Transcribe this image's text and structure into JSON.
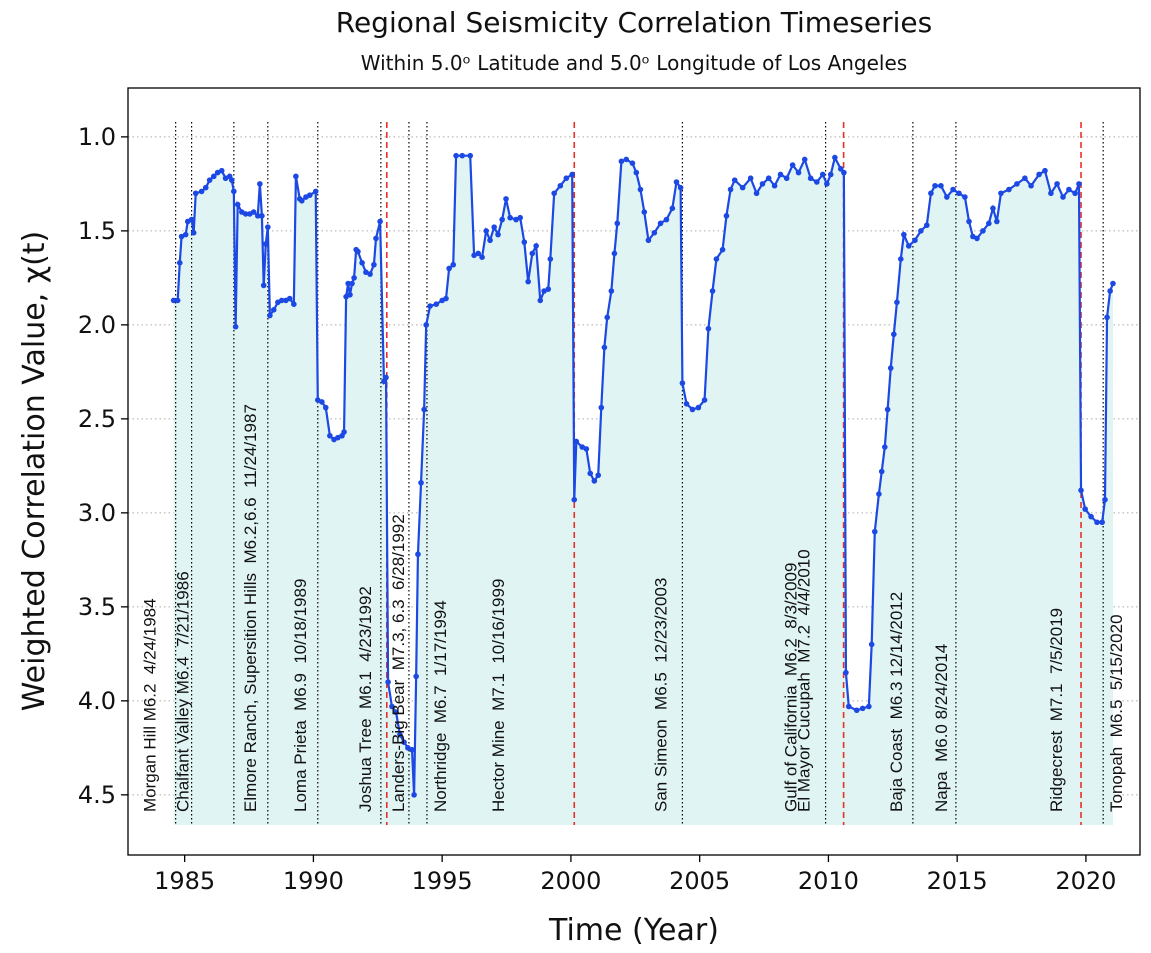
{
  "chart_data": {
    "type": "line",
    "title": "Regional Seismicity Correlation Timeseries",
    "subtitle": "Within 5.0ᵒ Latitude and 5.0ᵒ Longitude of Los Angeles",
    "xlabel": "Time (Year)",
    "ylabel": "Weighted Correlation Value, χ(t)",
    "xlim": [
      1982.8,
      2022.1
    ],
    "ylim": [
      4.82,
      0.74
    ],
    "xticks": [
      1985,
      1990,
      1995,
      2000,
      2005,
      2010,
      2015,
      2020
    ],
    "yticks": [
      {
        "value": 1,
        "label": "1.0"
      },
      1.5,
      {
        "value": 2,
        "label": "2.0"
      },
      2.5,
      {
        "value": 3,
        "label": "3.0"
      },
      3.5,
      {
        "value": 4,
        "label": "4.0"
      },
      4.5
    ],
    "grid": true,
    "fill_color": "#e0f4f4",
    "series": [
      {
        "color": "#1c48e3",
        "x": [
          1984.57,
          1984.73,
          1984.81,
          1984.88,
          1985.04,
          1985.12,
          1985.27,
          1985.35,
          1985.43,
          1985.66,
          1985.82,
          1985.97,
          1986.13,
          1986.28,
          1986.44,
          1986.59,
          1986.75,
          1986.83,
          1986.91,
          1986.98,
          1987.06,
          1987.22,
          1987.37,
          1987.53,
          1987.68,
          1987.84,
          1987.92,
          1988.0,
          1988.07,
          1988.15,
          1988.23,
          1988.31,
          1988.46,
          1988.62,
          1988.77,
          1988.93,
          1989.08,
          1989.24,
          1989.32,
          1989.47,
          1989.55,
          1989.71,
          1989.86,
          1990.09,
          1990.17,
          1990.33,
          1990.48,
          1990.64,
          1990.8,
          1990.95,
          1991.11,
          1991.19,
          1991.27,
          1991.35,
          1991.42,
          1991.5,
          1991.58,
          1991.66,
          1991.73,
          1991.89,
          1992.04,
          1992.2,
          1992.35,
          1992.43,
          1992.59,
          1992.74,
          1992.82,
          1992.9,
          1993.05,
          1993.21,
          1993.36,
          1993.52,
          1993.67,
          1993.83,
          1993.91,
          1993.99,
          1994.06,
          1994.18,
          1994.3,
          1994.38,
          1994.53,
          1994.77,
          1995.0,
          1995.15,
          1995.27,
          1995.43,
          1995.54,
          1995.78,
          1996.09,
          1996.24,
          1996.4,
          1996.55,
          1996.71,
          1996.86,
          1997.02,
          1997.17,
          1997.33,
          1997.48,
          1997.64,
          1997.87,
          1998.03,
          1998.19,
          1998.34,
          1998.5,
          1998.65,
          1998.81,
          1998.96,
          1999.12,
          1999.2,
          1999.35,
          1999.59,
          1999.82,
          2000.05,
          2000.13,
          2000.21,
          2000.44,
          2000.6,
          2000.75,
          2000.91,
          2001.06,
          2001.18,
          2001.3,
          2001.41,
          2001.57,
          2001.69,
          2001.8,
          2001.96,
          2002.15,
          2002.39,
          2002.54,
          2002.7,
          2002.85,
          2003.01,
          2003.24,
          2003.48,
          2003.71,
          2003.94,
          2004.1,
          2004.26,
          2004.33,
          2004.49,
          2004.72,
          2004.95,
          2005.19,
          2005.34,
          2005.5,
          2005.65,
          2005.89,
          2006.04,
          2006.2,
          2006.36,
          2006.67,
          2006.98,
          2007.21,
          2007.44,
          2007.68,
          2007.91,
          2008.14,
          2008.38,
          2008.61,
          2008.84,
          2009.08,
          2009.31,
          2009.55,
          2009.78,
          2009.94,
          2010.09,
          2010.25,
          2010.48,
          2010.6,
          2010.68,
          2010.79,
          2011.1,
          2011.33,
          2011.57,
          2011.68,
          2011.8,
          2011.96,
          2012.07,
          2012.19,
          2012.3,
          2012.42,
          2012.54,
          2012.66,
          2012.81,
          2012.93,
          2013.12,
          2013.36,
          2013.59,
          2013.82,
          2013.98,
          2014.14,
          2014.37,
          2014.6,
          2014.84,
          2015.07,
          2015.3,
          2015.46,
          2015.61,
          2015.77,
          2016.0,
          2016.23,
          2016.39,
          2016.54,
          2016.7,
          2017.01,
          2017.32,
          2017.63,
          2017.87,
          2018.18,
          2018.41,
          2018.64,
          2018.88,
          2019.11,
          2019.34,
          2019.58,
          2019.73,
          2019.81,
          2019.97,
          2020.2,
          2020.43,
          2020.63,
          2020.74,
          2020.82,
          2020.94,
          2021.05
        ],
        "values": [
          1.87,
          1.87,
          1.67,
          1.53,
          1.52,
          1.45,
          1.44,
          1.51,
          1.3,
          1.29,
          1.27,
          1.23,
          1.21,
          1.19,
          1.18,
          1.22,
          1.21,
          1.23,
          1.29,
          2.01,
          1.36,
          1.4,
          1.41,
          1.41,
          1.4,
          1.42,
          1.25,
          1.42,
          1.79,
          1.57,
          1.48,
          1.95,
          1.92,
          1.88,
          1.87,
          1.87,
          1.86,
          1.89,
          1.21,
          1.33,
          1.34,
          1.32,
          1.31,
          1.29,
          2.4,
          2.41,
          2.44,
          2.59,
          2.61,
          2.6,
          2.59,
          2.57,
          1.85,
          1.78,
          1.84,
          1.78,
          1.75,
          1.6,
          1.61,
          1.67,
          1.72,
          1.73,
          1.68,
          1.54,
          1.45,
          2.3,
          2.28,
          3.9,
          4.03,
          4.06,
          4.18,
          4.22,
          4.25,
          4.26,
          4.5,
          3.87,
          3.22,
          2.84,
          2.45,
          2.0,
          1.9,
          1.89,
          1.87,
          1.86,
          1.7,
          1.68,
          1.1,
          1.1,
          1.1,
          1.63,
          1.62,
          1.64,
          1.5,
          1.55,
          1.48,
          1.52,
          1.44,
          1.33,
          1.43,
          1.44,
          1.43,
          1.56,
          1.77,
          1.62,
          1.58,
          1.87,
          1.82,
          1.81,
          1.65,
          1.3,
          1.26,
          1.22,
          1.2,
          2.93,
          2.62,
          2.65,
          2.66,
          2.79,
          2.83,
          2.8,
          2.44,
          2.12,
          1.96,
          1.82,
          1.62,
          1.46,
          1.13,
          1.12,
          1.14,
          1.19,
          1.28,
          1.4,
          1.55,
          1.51,
          1.46,
          1.44,
          1.38,
          1.24,
          1.27,
          2.31,
          2.42,
          2.45,
          2.44,
          2.4,
          2.02,
          1.82,
          1.65,
          1.6,
          1.42,
          1.28,
          1.23,
          1.27,
          1.22,
          1.3,
          1.25,
          1.22,
          1.26,
          1.2,
          1.22,
          1.15,
          1.19,
          1.12,
          1.22,
          1.24,
          1.2,
          1.25,
          1.2,
          1.11,
          1.17,
          1.19,
          3.85,
          4.03,
          4.05,
          4.04,
          4.03,
          3.7,
          3.1,
          2.9,
          2.78,
          2.65,
          2.45,
          2.23,
          2.05,
          1.88,
          1.65,
          1.52,
          1.58,
          1.55,
          1.5,
          1.47,
          1.3,
          1.26,
          1.26,
          1.32,
          1.28,
          1.3,
          1.32,
          1.45,
          1.53,
          1.54,
          1.5,
          1.46,
          1.38,
          1.45,
          1.3,
          1.28,
          1.25,
          1.22,
          1.26,
          1.2,
          1.18,
          1.3,
          1.25,
          1.32,
          1.28,
          1.3,
          1.25,
          2.88,
          2.98,
          3.02,
          3.05,
          3.05,
          2.93,
          1.96,
          1.82,
          1.78
        ]
      }
    ],
    "event_lines": [
      {
        "x": 1984.65,
        "color": "#000000"
      },
      {
        "x": 1985.27,
        "color": "#000000"
      },
      {
        "x": 1986.91,
        "color": "#000000"
      },
      {
        "x": 1988.23,
        "color": "#000000"
      },
      {
        "x": 1990.17,
        "color": "#000000"
      },
      {
        "x": 1992.62,
        "color": "#000000"
      },
      {
        "x": 1992.85,
        "color": "#e8302a"
      },
      {
        "x": 1993.71,
        "color": "#000000"
      },
      {
        "x": 1994.41,
        "color": "#000000"
      },
      {
        "x": 2000.13,
        "color": "#e8302a"
      },
      {
        "x": 2004.33,
        "color": "#000000"
      },
      {
        "x": 2009.89,
        "color": "#000000"
      },
      {
        "x": 2010.59,
        "color": "#e8302a"
      },
      {
        "x": 2013.28,
        "color": "#000000"
      },
      {
        "x": 2014.95,
        "color": "#000000"
      },
      {
        "x": 2019.81,
        "color": "#e8302a"
      },
      {
        "x": 2020.67,
        "color": "#000000"
      }
    ],
    "event_labels": [
      {
        "x": 1983.64,
        "text": "Morgan Hill M6.2  4/24/1984"
      },
      {
        "x": 1984.92,
        "text": "Chalfant Valley M6.4  7/21/1986"
      },
      {
        "x": 1987.53,
        "text": "Elmore Ranch, Supersition Hills  M6.2,6.6  11/24/1987"
      },
      {
        "x": 1989.47,
        "text": "Loma Prieta  M6.9  10/18/1989"
      },
      {
        "x": 1992.0,
        "text": "Joshua Tree  M6.1  4/23/1992"
      },
      {
        "x": 1993.28,
        "text": "Landers-Big Bear  M7.3, 6.3  6/28/1992"
      },
      {
        "x": 1994.92,
        "text": "Northridge  M6.7  1/17/1994"
      },
      {
        "x": 1997.17,
        "text": "Hector Mine  M7.1  10/16/1999"
      },
      {
        "x": 2003.48,
        "text": "San Simeon  M6.5  12/23/2003"
      },
      {
        "x": 2008.53,
        "text": "Gulf of California  M6.2  8/3/2009"
      },
      {
        "x": 2009.04,
        "text": "El Mayor Cucupah  M7.2  4/4/2010"
      },
      {
        "x": 2012.62,
        "text": "Baja Coast  M6.3 12/14/2012"
      },
      {
        "x": 2014.37,
        "text": "Napa  M6.0 8/24/2014"
      },
      {
        "x": 2018.84,
        "text": "Ridgecrest  M7.1  7/5/2019"
      },
      {
        "x": 2021.17,
        "text": "Tonopah  M6.5  5/15/2020"
      }
    ]
  }
}
